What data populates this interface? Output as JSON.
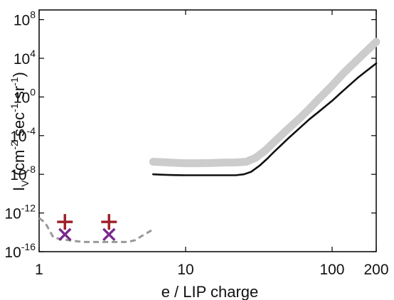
{
  "chart_data": {
    "type": "line",
    "title": "",
    "xlabel": "e / LIP charge",
    "ylabel": {
      "base": "I",
      "sub": "V",
      "open": " (cm",
      "exp1": "-2",
      "mid": " sec",
      "exp2": "-1",
      "mid2": " sr",
      "exp3": "-1",
      "close": ")"
    },
    "xscale": "log",
    "yscale": "log",
    "xlim": [
      1,
      200
    ],
    "ylim": [
      1e-16,
      1000000000.0
    ],
    "xticks": [
      {
        "value": 1,
        "label": "1"
      },
      {
        "value": 10,
        "label": "10"
      },
      {
        "value": 100,
        "label": "100"
      },
      {
        "value": 200,
        "label": "200"
      }
    ],
    "yticks": [
      {
        "value": 100000000.0,
        "base": "10",
        "exp": "8"
      },
      {
        "value": 10000.0,
        "base": "10",
        "exp": "4"
      },
      {
        "value": 1,
        "base": "10",
        "exp": "0"
      },
      {
        "value": 0.0001,
        "base": "10",
        "exp": "-4"
      },
      {
        "value": 1e-08,
        "base": "10",
        "exp": "-8"
      },
      {
        "value": 1e-12,
        "base": "10",
        "exp": "-12"
      },
      {
        "value": 1e-16,
        "base": "10",
        "exp": "-16"
      }
    ],
    "grid": false,
    "legend": "none",
    "series": [
      {
        "style": "band",
        "color": "#cccccc",
        "x": [
          6,
          7,
          8,
          10,
          12,
          15,
          18,
          22,
          26,
          30,
          35,
          40,
          50,
          60,
          70,
          80,
          100,
          120,
          150,
          200
        ],
        "y": [
          2e-07,
          1.8e-07,
          1.6e-07,
          1.4e-07,
          1.4e-07,
          1.5e-07,
          1.6e-07,
          1.7e-07,
          2e-07,
          5e-07,
          3e-06,
          2e-05,
          0.0005,
          0.006,
          0.06,
          0.5,
          15,
          300,
          8000,
          500000
        ]
      },
      {
        "style": "solid",
        "color": "#111111",
        "x": [
          6,
          7,
          8,
          10,
          12,
          15,
          18,
          22,
          25,
          28,
          32,
          36,
          40,
          50,
          60,
          70,
          80,
          100,
          120,
          150,
          200
        ],
        "y": [
          1e-08,
          9e-09,
          8.5e-09,
          8e-09,
          8e-09,
          8e-09,
          8e-09,
          8e-09,
          1e-08,
          1.8e-08,
          8e-08,
          4e-07,
          2e-06,
          5e-05,
          0.0006,
          0.005,
          0.025,
          0.4,
          5,
          100,
          3000
        ]
      },
      {
        "style": "dashed",
        "color": "#999999",
        "x": [
          1,
          1.1,
          1.25,
          1.4,
          1.6,
          2,
          2.5,
          3,
          3.5,
          4,
          4.5,
          5,
          6
        ],
        "y": [
          3e-13,
          1e-13,
          3e-15,
          2e-15,
          1.5e-15,
          1e-15,
          1e-15,
          1e-15,
          1e-15,
          1e-15,
          1.5e-15,
          4e-15,
          2e-14
        ]
      }
    ],
    "points": [
      {
        "marker": "plus",
        "color": "#a0202a",
        "x": 1.5,
        "y": 1.2e-13
      },
      {
        "marker": "plus",
        "color": "#a0202a",
        "x": 3.0,
        "y": 1.2e-13
      },
      {
        "marker": "cross",
        "color": "#7a2a8e",
        "x": 1.5,
        "y": 6e-15
      },
      {
        "marker": "cross",
        "color": "#7a2a8e",
        "x": 3.0,
        "y": 6e-15
      }
    ]
  }
}
